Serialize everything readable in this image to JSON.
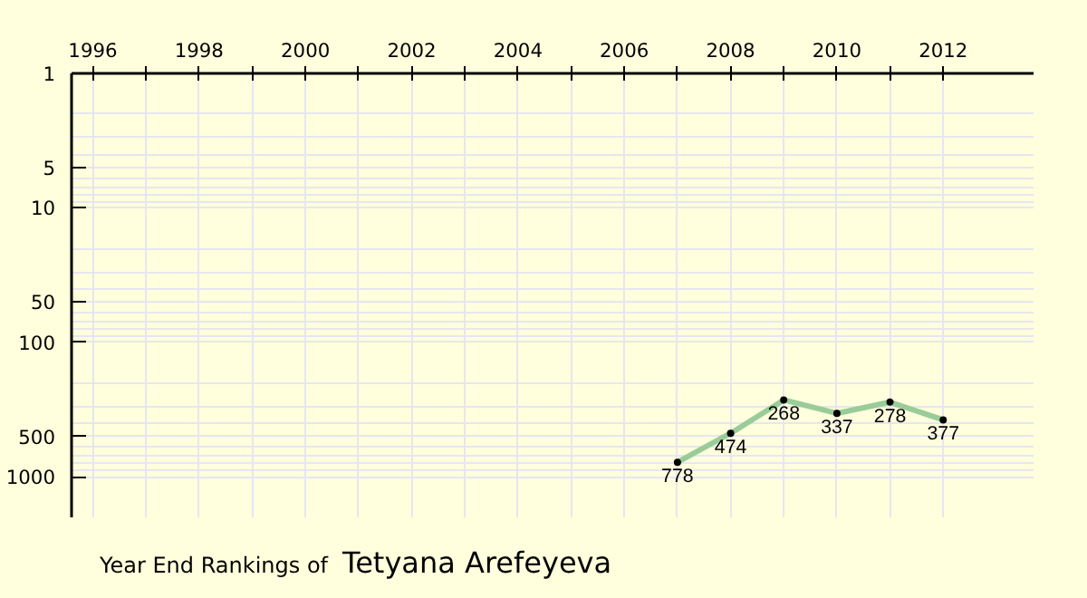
{
  "chart_data": {
    "type": "line",
    "title": "Year End Rankings of",
    "subtitle": "Tetyana Arefeyeva",
    "x": [
      2007,
      2008,
      2009,
      2010,
      2011,
      2012
    ],
    "series": [
      {
        "color": "#99cc99",
        "values": [
          778,
          474,
          268,
          337,
          278,
          377
        ]
      }
    ],
    "xlim": [
      1995.6,
      2013.7
    ],
    "xticks": [
      1996,
      {
        "value": 1997,
        "label": null
      },
      1998,
      {
        "value": 1999,
        "label": null
      },
      2000,
      {
        "value": 2001,
        "label": null
      },
      2002,
      {
        "value": 2003,
        "label": null
      },
      2004,
      {
        "value": 2005,
        "label": null
      },
      2006,
      {
        "value": 2007,
        "label": null
      },
      2008,
      {
        "value": 2009,
        "label": null
      },
      2010,
      {
        "value": 2011,
        "label": null
      },
      2012
    ],
    "ylim": [
      2000,
      1
    ],
    "yticks": [
      1,
      5,
      10,
      50,
      100,
      500,
      1000
    ],
    "log": "y",
    "grid": true,
    "marker": "circle",
    "data_labels": true
  }
}
